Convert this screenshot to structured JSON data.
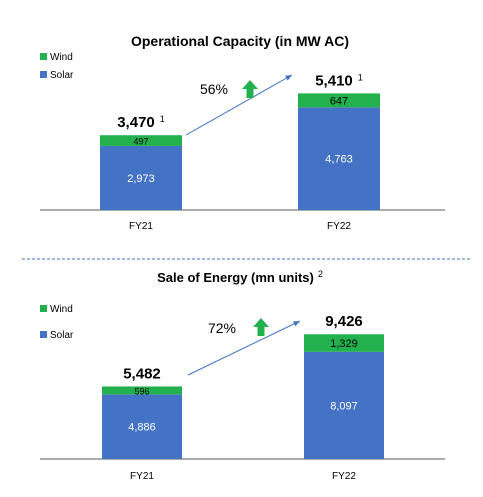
{
  "colors": {
    "wind": "#22b14c",
    "solar": "#4472c4",
    "arrow_line": "#4472c4",
    "growth_arrow": "#22b14c",
    "divider": "#4472c4",
    "axis": "#595959",
    "text": "#000000"
  },
  "chart_data": [
    {
      "type": "bar",
      "stacked": true,
      "title": "Operational Capacity (in MW AC)",
      "title_note": "",
      "categories": [
        "FY21",
        "FY22"
      ],
      "series": [
        {
          "name": "Solar",
          "values": [
            2973,
            4763
          ],
          "labels": [
            "2,973",
            "4,763"
          ]
        },
        {
          "name": "Wind",
          "values": [
            497,
            647
          ],
          "labels": [
            "497",
            "647"
          ]
        }
      ],
      "totals": [
        3470,
        5410
      ],
      "total_labels": [
        "3,470",
        "5,410"
      ],
      "total_notes": [
        "1",
        "1"
      ],
      "growth_label": "56%",
      "legend": [
        "Wind",
        "Solar"
      ],
      "legend_position": "top-left",
      "ylim": [
        0,
        5800
      ],
      "grid": false
    },
    {
      "type": "bar",
      "stacked": true,
      "title": "Sale of Energy (mn units)",
      "title_note": "2",
      "categories": [
        "FY21",
        "FY22"
      ],
      "series": [
        {
          "name": "Solar",
          "values": [
            4886,
            8097
          ],
          "labels": [
            "4,886",
            "8,097"
          ]
        },
        {
          "name": "Wind",
          "values": [
            596,
            1329
          ],
          "labels": [
            "596",
            "1,329"
          ]
        }
      ],
      "totals": [
        5482,
        9426
      ],
      "total_labels": [
        "5,482",
        "9,426"
      ],
      "total_notes": [
        "",
        ""
      ],
      "growth_label": "72%",
      "legend": [
        "Wind",
        "Solar"
      ],
      "legend_position": "top-left",
      "ylim": [
        0,
        10200
      ],
      "grid": false
    }
  ]
}
